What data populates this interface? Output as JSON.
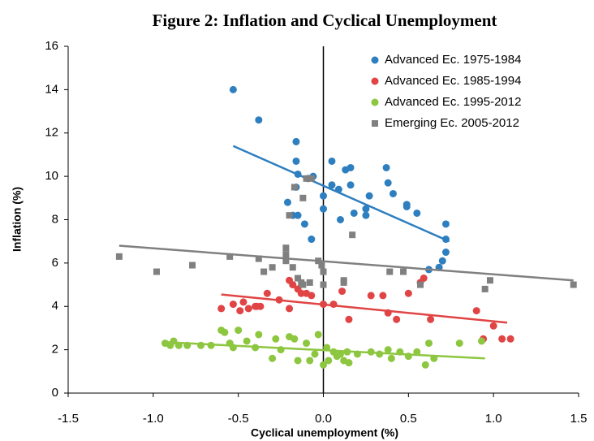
{
  "chart_data": {
    "type": "scatter",
    "title": "Figure 2: Inflation and Cyclical Unemployment",
    "x_label": "Cyclical unemployment (%)",
    "y_label": "Inflation (%)",
    "xlim": [
      -1.5,
      1.5
    ],
    "ylim": [
      0,
      16
    ],
    "xticks": [
      -1.5,
      {
        "value": -1.0,
        "label": "-1.0"
      },
      -0.5,
      {
        "value": 0,
        "label": "0.0"
      },
      0.5,
      {
        "value": 1.0,
        "label": "1.0"
      },
      1.5
    ],
    "yticks": [
      0,
      2,
      4,
      6,
      8,
      10,
      12,
      14,
      16
    ],
    "legend": "top-right",
    "series": [
      {
        "name": "Advanced Ec. 1975-1984",
        "color": "#2e7fc0",
        "marker": "circle",
        "x": [
          -0.53,
          -0.38,
          -0.16,
          -0.16,
          -0.15,
          -0.06,
          -0.09,
          -0.16,
          -0.21,
          0.05,
          0.16,
          0.13,
          -0.15,
          -0.18,
          -0.11,
          -0.07,
          0,
          0,
          0.05,
          0.09,
          0.16,
          0.1,
          0.18,
          0.25,
          0.25,
          0.27,
          0.37,
          0.38,
          0.41,
          0.49,
          0.49,
          0.55,
          0.62,
          0.72,
          0.72,
          0.72,
          0.7,
          0.68
        ],
        "values": [
          14.0,
          12.6,
          11.6,
          10.7,
          10.1,
          10.0,
          9.9,
          9.5,
          8.8,
          10.7,
          10.4,
          10.3,
          8.2,
          8.2,
          7.8,
          7.1,
          9.1,
          8.5,
          9.6,
          9.4,
          9.6,
          8.0,
          8.3,
          8.2,
          8.5,
          9.1,
          10.4,
          9.7,
          9.2,
          8.7,
          8.6,
          8.3,
          5.7,
          7.8,
          7.1,
          6.5,
          6.1,
          5.8
        ],
        "trend": {
          "x": [
            -0.53,
            0.74
          ],
          "values": [
            11.4,
            7.0
          ]
        }
      },
      {
        "name": "Advanced Ec. 1985-1994",
        "color": "#e04444",
        "marker": "circle",
        "x": [
          -0.2,
          -0.18,
          -0.26,
          -0.33,
          -0.37,
          -0.4,
          -0.47,
          -0.53,
          -0.6,
          -0.49,
          -0.44,
          -0.39,
          -0.15,
          -0.13,
          -0.1,
          -0.07,
          -0.2,
          0,
          0.06,
          0.11,
          0.15,
          0.28,
          0.35,
          0.38,
          0.43,
          0.5,
          0.59,
          0.57,
          0.63,
          0.9,
          0.94,
          1.0,
          1.05,
          1.1
        ],
        "values": [
          5.2,
          5.0,
          4.3,
          4.6,
          4.0,
          4.0,
          4.2,
          4.1,
          3.9,
          3.8,
          3.9,
          4.0,
          4.8,
          4.6,
          4.6,
          4.5,
          3.9,
          4.1,
          4.1,
          4.7,
          3.4,
          4.5,
          4.5,
          3.7,
          3.4,
          4.6,
          5.3,
          5.1,
          3.4,
          3.8,
          2.5,
          3.1,
          2.5,
          2.5
        ],
        "trend": {
          "x": [
            -0.6,
            1.08
          ],
          "values": [
            4.55,
            3.25
          ]
        }
      },
      {
        "name": "Advanced Ec. 1995-2012",
        "color": "#8dc63f",
        "marker": "circle",
        "x": [
          -0.93,
          -0.9,
          -0.88,
          -0.85,
          -0.8,
          -0.72,
          -0.66,
          -0.6,
          -0.58,
          -0.55,
          -0.53,
          -0.5,
          -0.45,
          -0.4,
          -0.38,
          -0.3,
          -0.28,
          -0.25,
          -0.2,
          -0.17,
          -0.15,
          -0.1,
          -0.08,
          -0.05,
          -0.03,
          0,
          0.02,
          0.03,
          0.06,
          0.08,
          0.1,
          0.12,
          0.14,
          0.15,
          0.2,
          0.28,
          0.33,
          0.38,
          0.4,
          0.45,
          0.5,
          0.55,
          0.6,
          0.62,
          0.65,
          0.8,
          0.93
        ],
        "values": [
          2.3,
          2.2,
          2.4,
          2.2,
          2.2,
          2.2,
          2.2,
          2.9,
          2.8,
          2.3,
          2.1,
          2.9,
          2.4,
          2.1,
          2.7,
          1.6,
          2.5,
          2.0,
          2.6,
          2.5,
          1.5,
          2.3,
          1.5,
          1.8,
          2.7,
          1.3,
          2.1,
          1.5,
          1.9,
          1.7,
          1.8,
          1.5,
          1.9,
          1.4,
          1.8,
          1.9,
          1.8,
          2.0,
          1.6,
          1.9,
          1.7,
          1.9,
          1.3,
          2.3,
          1.6,
          2.3,
          2.4
        ],
        "trend": {
          "x": [
            -0.93,
            0.95
          ],
          "values": [
            2.35,
            1.6
          ]
        }
      },
      {
        "name": "Emerging Ec. 2005-2012",
        "color": "#808080",
        "marker": "square",
        "x": [
          -1.2,
          -0.98,
          -0.77,
          -0.55,
          -0.38,
          -0.35,
          -0.3,
          -0.22,
          -0.22,
          -0.22,
          -0.18,
          -0.15,
          -0.13,
          -0.12,
          -0.08,
          -0.17,
          -0.2,
          -0.12,
          -0.07,
          -0.1,
          -0.03,
          -0.01,
          0,
          0,
          0.12,
          0.17,
          0.12,
          0.39,
          0.47,
          0.57,
          0.95,
          0.98,
          1.47
        ],
        "values": [
          6.3,
          5.6,
          5.9,
          6.3,
          6.2,
          5.6,
          5.8,
          6.7,
          6.4,
          6.1,
          5.8,
          5.3,
          5.1,
          5.0,
          5.1,
          9.5,
          8.2,
          9.0,
          9.9,
          9.9,
          6.1,
          5.9,
          5.6,
          5.0,
          5.2,
          7.3,
          5.1,
          5.6,
          5.6,
          5.0,
          4.8,
          5.2,
          5.0
        ],
        "trend": {
          "x": [
            -1.2,
            1.47
          ],
          "values": [
            6.8,
            5.2
          ]
        }
      }
    ]
  }
}
